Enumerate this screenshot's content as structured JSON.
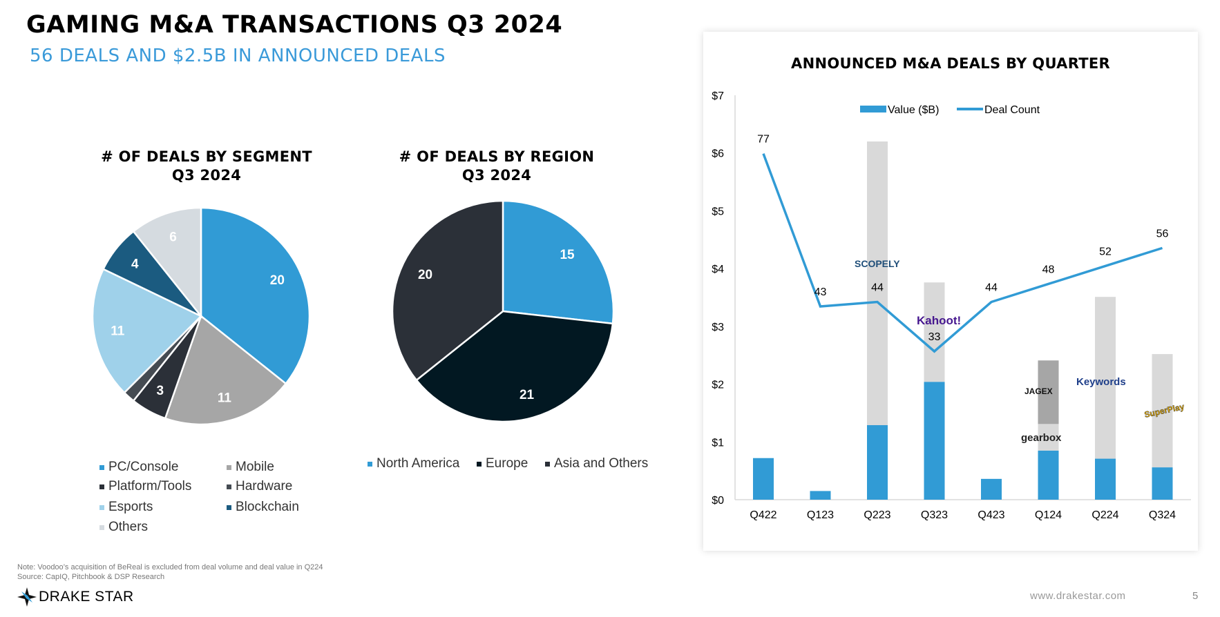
{
  "header": {
    "title": "GAMING M&A TRANSACTIONS Q3 2024",
    "subtitle": "56 DEALS AND $2.5B IN ANNOUNCED DEALS"
  },
  "chart_data": [
    {
      "type": "pie",
      "title": "# OF DEALS BY SEGMENT",
      "subtitle": "Q3 2024",
      "slices": [
        {
          "label": "PC/Console",
          "value": 20,
          "data_label": "20",
          "color": "#319bd5"
        },
        {
          "label": "Mobile",
          "value": 11,
          "data_label": "11",
          "color": "#a6a6a6"
        },
        {
          "label": "Platform/Tools",
          "value": 3,
          "data_label": "3",
          "color": "#2b3038"
        },
        {
          "label": "Hardware",
          "value": 1,
          "data_label": "",
          "color": "#454b52"
        },
        {
          "label": "Esports",
          "value": 11,
          "data_label": "11",
          "color": "#9fd1ea"
        },
        {
          "label": "Blockchain",
          "value": 4,
          "data_label": "4",
          "color": "#1b5b80"
        },
        {
          "label": "Others",
          "value": 6,
          "data_label": "6",
          "color": "#d5dbe0"
        }
      ],
      "legend_placement": "bottom"
    },
    {
      "type": "pie",
      "title": "# OF DEALS BY REGION",
      "subtitle": "Q3 2024",
      "slices": [
        {
          "label": "North America",
          "value": 15,
          "data_label": "15",
          "color": "#319bd5"
        },
        {
          "label": "Europe",
          "value": 21,
          "data_label": "21",
          "color": "#021822"
        },
        {
          "label": "Asia and Others",
          "value": 20,
          "data_label": "20",
          "color": "#2b3038"
        }
      ],
      "legend_placement": "bottom"
    },
    {
      "type": "bar+line",
      "title": "ANNOUNCED M&A DEALS BY QUARTER",
      "categories": [
        "Q422",
        "Q123",
        "Q223",
        "Q323",
        "Q423",
        "Q124",
        "Q224",
        "Q324"
      ],
      "series": [
        {
          "name": "Value ($B)",
          "type": "bar",
          "values": [
            0.72,
            0.15,
            1.29,
            2.04,
            0.36,
            0.85,
            0.71,
            0.56
          ],
          "color": "#319bd5"
        },
        {
          "type": "bar-stack",
          "values": [
            0,
            0,
            4.91,
            1.72,
            0,
            0.46,
            2.8,
            1.96
          ],
          "color": "#d9d9d9"
        },
        {
          "type": "bar-stack",
          "values": [
            0,
            0,
            0,
            0,
            0,
            1.1,
            0,
            0
          ],
          "color": "#a6a6a6"
        },
        {
          "name": "Deal Count",
          "type": "line",
          "values": [
            77,
            43,
            44,
            33,
            44,
            48,
            52,
            56
          ],
          "color": "#319bd5"
        }
      ],
      "yticks": [
        "$0",
        "$1",
        "$2",
        "$3",
        "$4",
        "$5",
        "$6",
        "$7"
      ],
      "ylim": [
        0,
        7
      ],
      "y2lim": [
        0,
        90
      ],
      "grid": false,
      "legend_placement": "top",
      "logos": [
        {
          "text": "SCOPELY",
          "category": "Q223",
          "color": "#1f4e79"
        },
        {
          "text": "Kahoot!",
          "category": "Q323",
          "color": "#46178f"
        },
        {
          "text": "JAGEX",
          "category": "Q124",
          "color": "#111111"
        },
        {
          "text": "gearbox",
          "category": "Q124",
          "color": "#222222"
        },
        {
          "text": "Keywords",
          "category": "Q224",
          "color": "#1f3f8a"
        },
        {
          "text": "SuperPlay",
          "category": "Q324",
          "color": "#f2b400"
        }
      ]
    }
  ],
  "footer": {
    "note": "Note: Voodoo’s acquisition of BeReal is excluded from deal volume and deal value in Q224",
    "source": "Source: CapIQ, Pitchbook & DSP Research",
    "logo": "DRAKE STAR",
    "website": "www.drakestar.com",
    "page_number": "5"
  }
}
